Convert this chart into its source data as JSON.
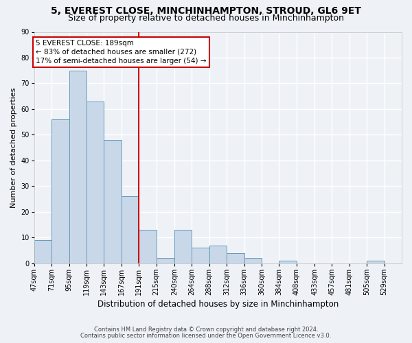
{
  "title": "5, EVEREST CLOSE, MINCHINHAMPTON, STROUD, GL6 9ET",
  "subtitle": "Size of property relative to detached houses in Minchinhampton",
  "xlabel": "Distribution of detached houses by size in Minchinhampton",
  "ylabel": "Number of detached properties",
  "bin_labels": [
    "47sqm",
    "71sqm",
    "95sqm",
    "119sqm",
    "143sqm",
    "167sqm",
    "191sqm",
    "215sqm",
    "240sqm",
    "264sqm",
    "288sqm",
    "312sqm",
    "336sqm",
    "360sqm",
    "384sqm",
    "408sqm",
    "433sqm",
    "457sqm",
    "481sqm",
    "505sqm",
    "529sqm"
  ],
  "bar_heights": [
    9,
    56,
    75,
    63,
    48,
    26,
    13,
    2,
    13,
    6,
    7,
    4,
    2,
    0,
    1,
    0,
    0,
    0,
    0,
    1,
    0
  ],
  "bar_color": "#c8d8e8",
  "bar_edge_color": "#6699bb",
  "bin_edges": [
    47,
    71,
    95,
    119,
    143,
    167,
    191,
    215,
    240,
    264,
    288,
    312,
    336,
    360,
    384,
    408,
    433,
    457,
    481,
    505,
    529,
    553
  ],
  "annotation_title": "5 EVEREST CLOSE: 189sqm",
  "annotation_line1": "← 83% of detached houses are smaller (272)",
  "annotation_line2": "17% of semi-detached houses are larger (54) →",
  "annotation_box_color": "#ffffff",
  "annotation_box_edge": "#cc0000",
  "vline_color": "#cc0000",
  "vline_x_index": 6,
  "ylim": [
    0,
    90
  ],
  "yticks": [
    0,
    10,
    20,
    30,
    40,
    50,
    60,
    70,
    80,
    90
  ],
  "footnote1": "Contains HM Land Registry data © Crown copyright and database right 2024.",
  "footnote2": "Contains public sector information licensed under the Open Government Licence v3.0.",
  "background_color": "#eef2f7",
  "grid_color": "#ffffff",
  "title_fontsize": 10,
  "subtitle_fontsize": 9,
  "xlabel_fontsize": 8.5,
  "ylabel_fontsize": 8,
  "tick_fontsize": 7,
  "footnote_fontsize": 6,
  "annotation_fontsize": 7.5
}
